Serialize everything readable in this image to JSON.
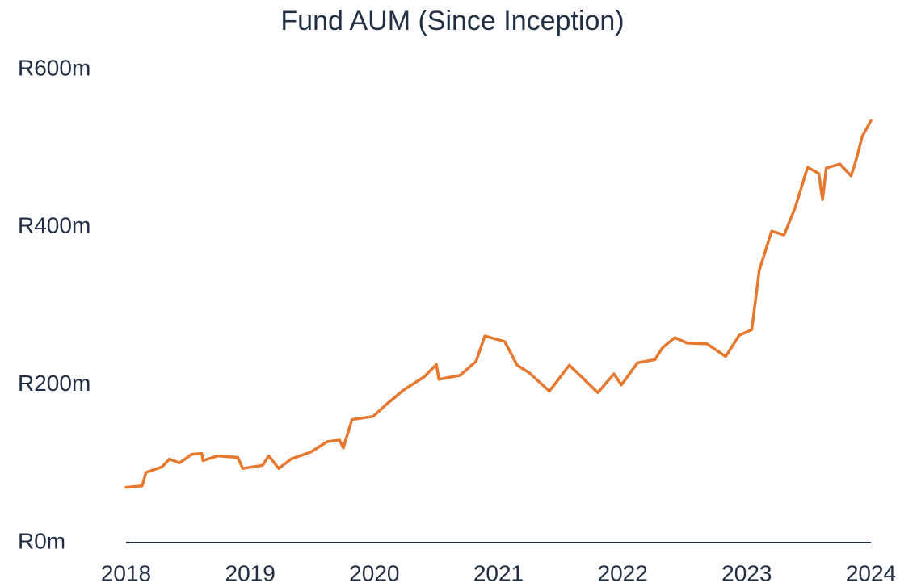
{
  "chart_data": {
    "type": "line",
    "title": "Fund AUM (Since Inception)",
    "x": [
      2018.0,
      2018.13,
      2018.16,
      2018.29,
      2018.35,
      2018.43,
      2018.53,
      2018.61,
      2018.62,
      2018.74,
      2018.9,
      2018.94,
      2019.1,
      2019.15,
      2019.23,
      2019.33,
      2019.49,
      2019.62,
      2019.72,
      2019.75,
      2019.82,
      2019.99,
      2020.11,
      2020.24,
      2020.4,
      2020.5,
      2020.52,
      2020.69,
      2020.82,
      2020.89,
      2021.05,
      2021.15,
      2021.25,
      2021.41,
      2021.57,
      2021.67,
      2021.8,
      2021.93,
      2021.99,
      2022.12,
      2022.26,
      2022.32,
      2022.42,
      2022.52,
      2022.68,
      2022.83,
      2022.94,
      2023.04,
      2023.1,
      2023.2,
      2023.3,
      2023.39,
      2023.49,
      2023.58,
      2023.61,
      2023.64,
      2023.75,
      2023.84,
      2023.88,
      2023.93,
      2024.0
    ],
    "series": [
      {
        "color": "#e8772e",
        "values": [
          70,
          72,
          89,
          96,
          106,
          101,
          112,
          113,
          104,
          110,
          108,
          94,
          98,
          110,
          94,
          106,
          115,
          128,
          130,
          120,
          156,
          160,
          177,
          194,
          210,
          226,
          207,
          212,
          230,
          262,
          255,
          225,
          215,
          192,
          225,
          210,
          190,
          214,
          200,
          228,
          232,
          247,
          260,
          253,
          252,
          236,
          263,
          270,
          345,
          395,
          390,
          425,
          476,
          468,
          435,
          475,
          480,
          465,
          485,
          515,
          535
        ]
      }
    ],
    "xlim": [
      2018,
      2024
    ],
    "xticks": [
      2018,
      2019,
      2020,
      2021,
      2022,
      2023,
      2024
    ],
    "ylim": [
      0,
      600
    ],
    "yticks": [
      {
        "value": 0,
        "label": "R0m"
      },
      {
        "value": 200,
        "label": "R200m"
      },
      {
        "value": 400,
        "label": "R400m"
      },
      {
        "value": 600,
        "label": "R600m"
      }
    ],
    "grid": false
  }
}
